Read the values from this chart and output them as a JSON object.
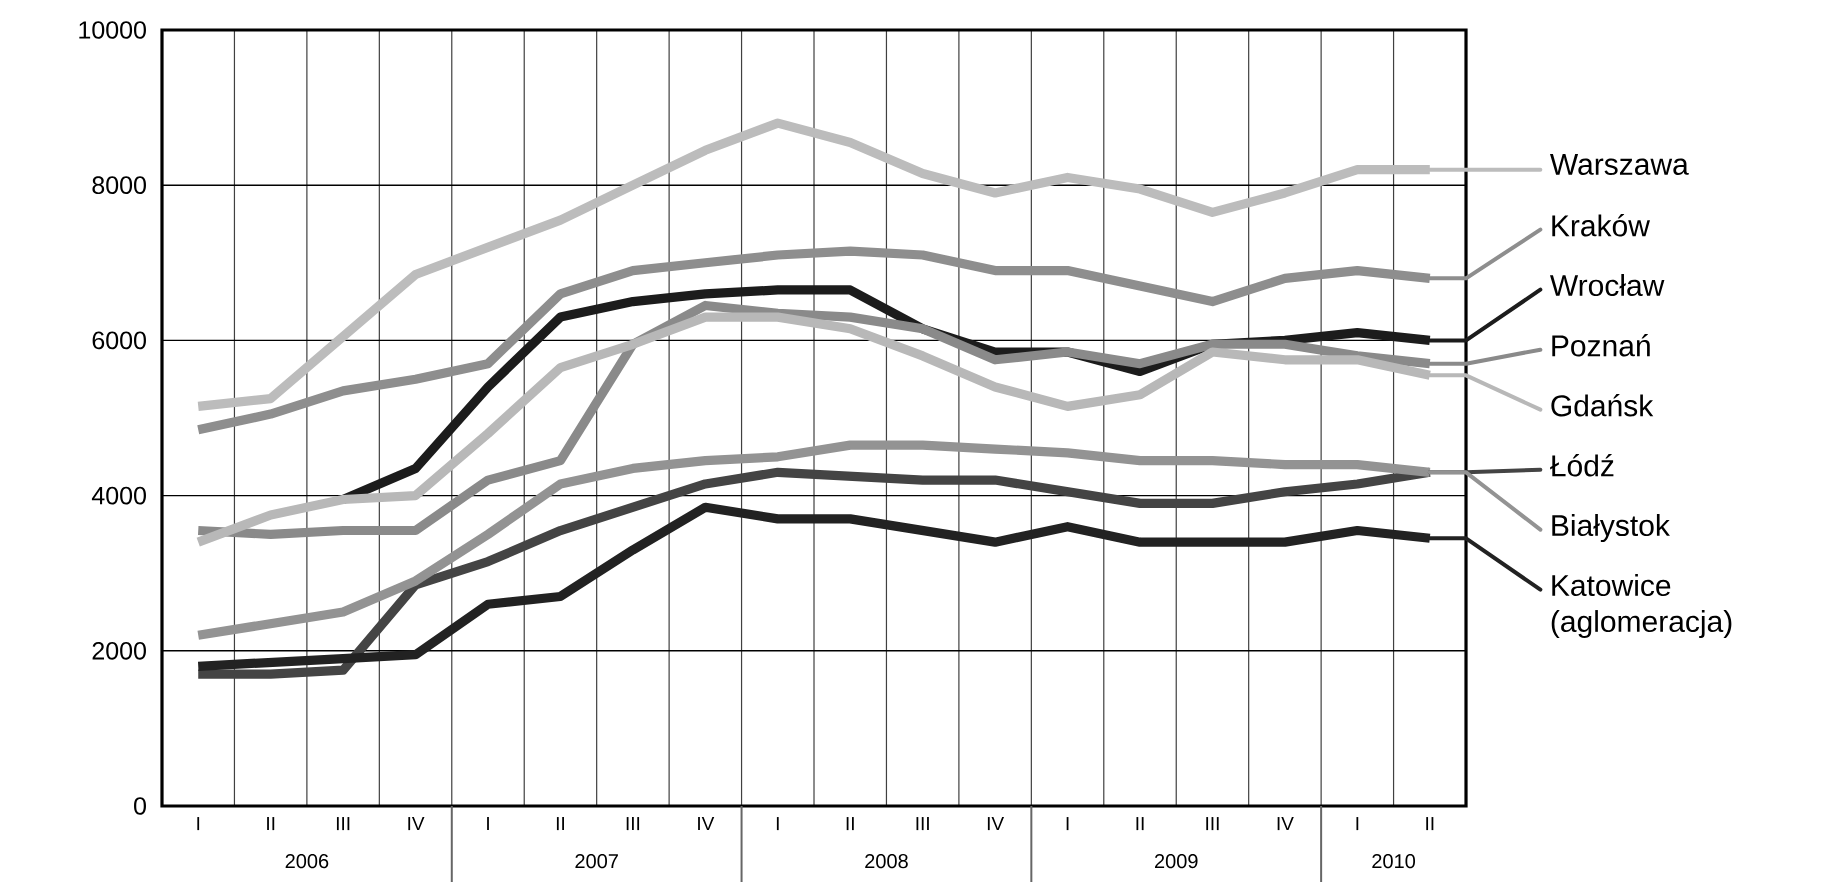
{
  "chart_data": {
    "type": "line",
    "categories": [
      "I",
      "II",
      "III",
      "IV",
      "I",
      "II",
      "III",
      "IV",
      "I",
      "II",
      "III",
      "IV",
      "I",
      "II",
      "III",
      "IV",
      "I",
      "II"
    ],
    "annotations": [
      "2006",
      "2007",
      "2008",
      "2009",
      "2010"
    ],
    "ylim": [
      0,
      10000
    ],
    "yticks": [
      0,
      2000,
      4000,
      6000,
      8000,
      10000
    ],
    "grid": true,
    "legend": "right",
    "series": [
      {
        "name": "Warszawa",
        "color": "#bcbcbc",
        "values": [
          5150,
          5250,
          6050,
          6850,
          7200,
          7550,
          8000,
          8450,
          8800,
          8550,
          8150,
          7900,
          8100,
          7950,
          7650,
          7900,
          8200,
          8200
        ]
      },
      {
        "name": "Kraków",
        "color": "#8e8e8e",
        "values": [
          4850,
          5050,
          5350,
          5500,
          5700,
          6600,
          6900,
          7000,
          7100,
          7150,
          7100,
          6900,
          6900,
          6700,
          6500,
          6800,
          6900,
          6800
        ]
      },
      {
        "name": "Wrocław",
        "color": "#1c1c1c",
        "values": [
          null,
          null,
          3950,
          4350,
          5400,
          6300,
          6500,
          6600,
          6650,
          6650,
          6150,
          5850,
          5850,
          5600,
          5950,
          6000,
          6100,
          6000
        ]
      },
      {
        "name": "Poznań",
        "color": "#8a8a8a",
        "values": [
          3550,
          3500,
          3550,
          3550,
          4200,
          4450,
          5950,
          6450,
          6350,
          6300,
          6150,
          5750,
          5850,
          5700,
          5950,
          5950,
          5800,
          5700
        ]
      },
      {
        "name": "Gdańsk",
        "color": "#b8b8b8",
        "values": [
          3400,
          3750,
          3950,
          4000,
          4800,
          5650,
          5950,
          6300,
          6300,
          6150,
          5800,
          5400,
          5150,
          5300,
          5850,
          5750,
          5750,
          5550
        ]
      },
      {
        "name": "Łódź",
        "color": "#444444",
        "values": [
          1700,
          1700,
          1750,
          2850,
          3150,
          3550,
          3850,
          4150,
          4300,
          4250,
          4200,
          4200,
          4050,
          3900,
          3900,
          4050,
          4150,
          4300
        ]
      },
      {
        "name": "Białystok",
        "color": "#939393",
        "values": [
          2200,
          2350,
          2500,
          2900,
          3500,
          4150,
          4350,
          4450,
          4500,
          4650,
          4650,
          4600,
          4550,
          4450,
          4450,
          4400,
          4400,
          4300
        ]
      },
      {
        "name": "Katowice (aglomeracja)",
        "color": "#222222",
        "values": [
          1800,
          1850,
          1900,
          1950,
          2600,
          2700,
          3300,
          3850,
          3700,
          3700,
          3550,
          3400,
          3600,
          3400,
          3400,
          3400,
          3550,
          3450
        ]
      }
    ]
  }
}
